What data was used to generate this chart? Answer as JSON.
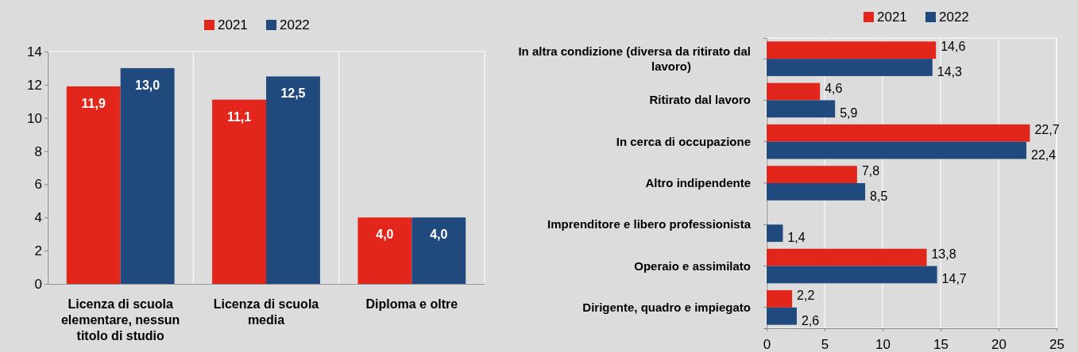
{
  "chart_data": [
    {
      "type": "bar",
      "categories": [
        "Licenza di scuola elementare, nessun titolo di studio",
        "Licenza di scuola media",
        "Diploma e oltre"
      ],
      "series": [
        {
          "name": "2021",
          "color": "#e3261b",
          "values": [
            11.9,
            11.1,
            4.0
          ],
          "value_labels": [
            "11,9",
            "11,1",
            "4,0"
          ]
        },
        {
          "name": "2022",
          "color": "#204a7e",
          "values": [
            13.0,
            12.5,
            4.0
          ],
          "value_labels": [
            "13,0",
            "12,5",
            "4,0"
          ]
        }
      ],
      "ylim": [
        0,
        14
      ],
      "yticks": [
        0,
        2,
        4,
        6,
        8,
        10,
        12,
        14
      ],
      "legend": "top",
      "grid": false
    },
    {
      "type": "bar",
      "orientation": "horizontal",
      "categories": [
        "In altra condizione (diversa da ritirato dal lavoro)",
        "Ritirato dal lavoro",
        "In cerca di occupazione",
        "Altro indipendente",
        "Imprenditore e libero professionista",
        "Operaio e assimilato",
        "Dirigente, quadro e impiegato"
      ],
      "series": [
        {
          "name": "2021",
          "color": "#e3261b",
          "values": [
            14.6,
            4.6,
            22.7,
            7.8,
            null,
            13.8,
            2.2
          ],
          "value_labels": [
            "14,6",
            "4,6",
            "22,7",
            "7,8",
            null,
            "13,8",
            "2,2"
          ]
        },
        {
          "name": "2022",
          "color": "#204a7e",
          "values": [
            14.3,
            5.9,
            22.4,
            8.5,
            1.4,
            14.7,
            2.6
          ],
          "value_labels": [
            "14,3",
            "5,9",
            "22,4",
            "8,5",
            "1,4",
            "14,7",
            "2,6"
          ]
        }
      ],
      "xlim": [
        0,
        25
      ],
      "xticks": [
        0,
        5,
        10,
        15,
        20,
        25
      ],
      "legend": "top",
      "grid": "x"
    }
  ]
}
